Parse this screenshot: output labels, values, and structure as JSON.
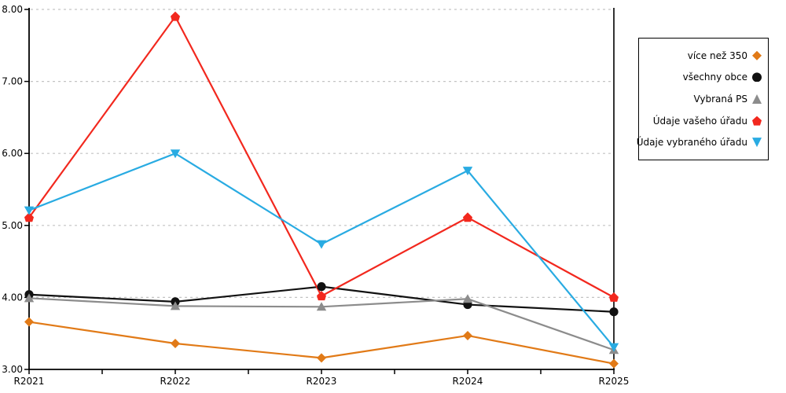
{
  "chart_data": {
    "type": "line",
    "categories": [
      "R2021",
      "R2022",
      "R2023",
      "R2024",
      "R2025"
    ],
    "series": [
      {
        "name": "více než 350",
        "marker": "diamond",
        "color": "#e17a17",
        "values": [
          3.66,
          3.36,
          3.16,
          3.47,
          3.08
        ]
      },
      {
        "name": "všechny obce",
        "marker": "circle",
        "color": "#111111",
        "values": [
          4.04,
          3.94,
          4.15,
          3.9,
          3.8
        ]
      },
      {
        "name": "Vybraná PS",
        "marker": "triangle-up",
        "color": "#8c8c8c",
        "values": [
          3.99,
          3.88,
          3.87,
          3.98,
          3.27
        ]
      },
      {
        "name": "Údaje vašeho úřadu",
        "marker": "pentagon-up",
        "color": "#f2281e",
        "values": [
          5.11,
          7.9,
          4.02,
          5.11,
          4.0
        ]
      },
      {
        "name": "Údaje vybraného úřadu",
        "marker": "triangle-down",
        "color": "#29abe2",
        "values": [
          5.21,
          6.0,
          4.74,
          5.76,
          3.31
        ]
      }
    ],
    "title": "",
    "xlabel": "",
    "ylabel": "",
    "ylim": [
      3,
      8
    ],
    "yticks": [
      "3.00",
      "4.00",
      "5.00",
      "6.00",
      "7.00",
      "8.00"
    ],
    "grid": true,
    "grid_style": "dashed",
    "legend_position": "right"
  },
  "colors": {
    "background": "#ffffff",
    "axis": "#000000",
    "grid": "#c3c3c3",
    "tick_label": "#000000"
  }
}
